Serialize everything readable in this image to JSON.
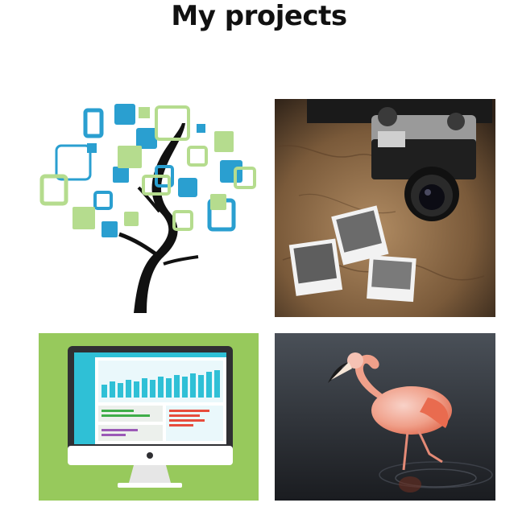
{
  "page": {
    "title": "My projects"
  },
  "projects": [
    {
      "id": "tree",
      "image": "tree-of-squares-illustration"
    },
    {
      "id": "camera",
      "image": "camera-on-map-with-polaroids-photo"
    },
    {
      "id": "dashboard",
      "image": "analytics-dashboard-monitor-illustration"
    },
    {
      "id": "flamingo",
      "image": "flamingo-in-water-photo"
    }
  ],
  "colors": {
    "tree_blue": "#2a9fd0",
    "tree_green": "#b5dc8e",
    "dashboard_bg": "#97c95c",
    "dashboard_teal": "#2fc0d6",
    "flamingo_pink": "#f0a08a",
    "photo_dark": "#2b2b2b"
  }
}
